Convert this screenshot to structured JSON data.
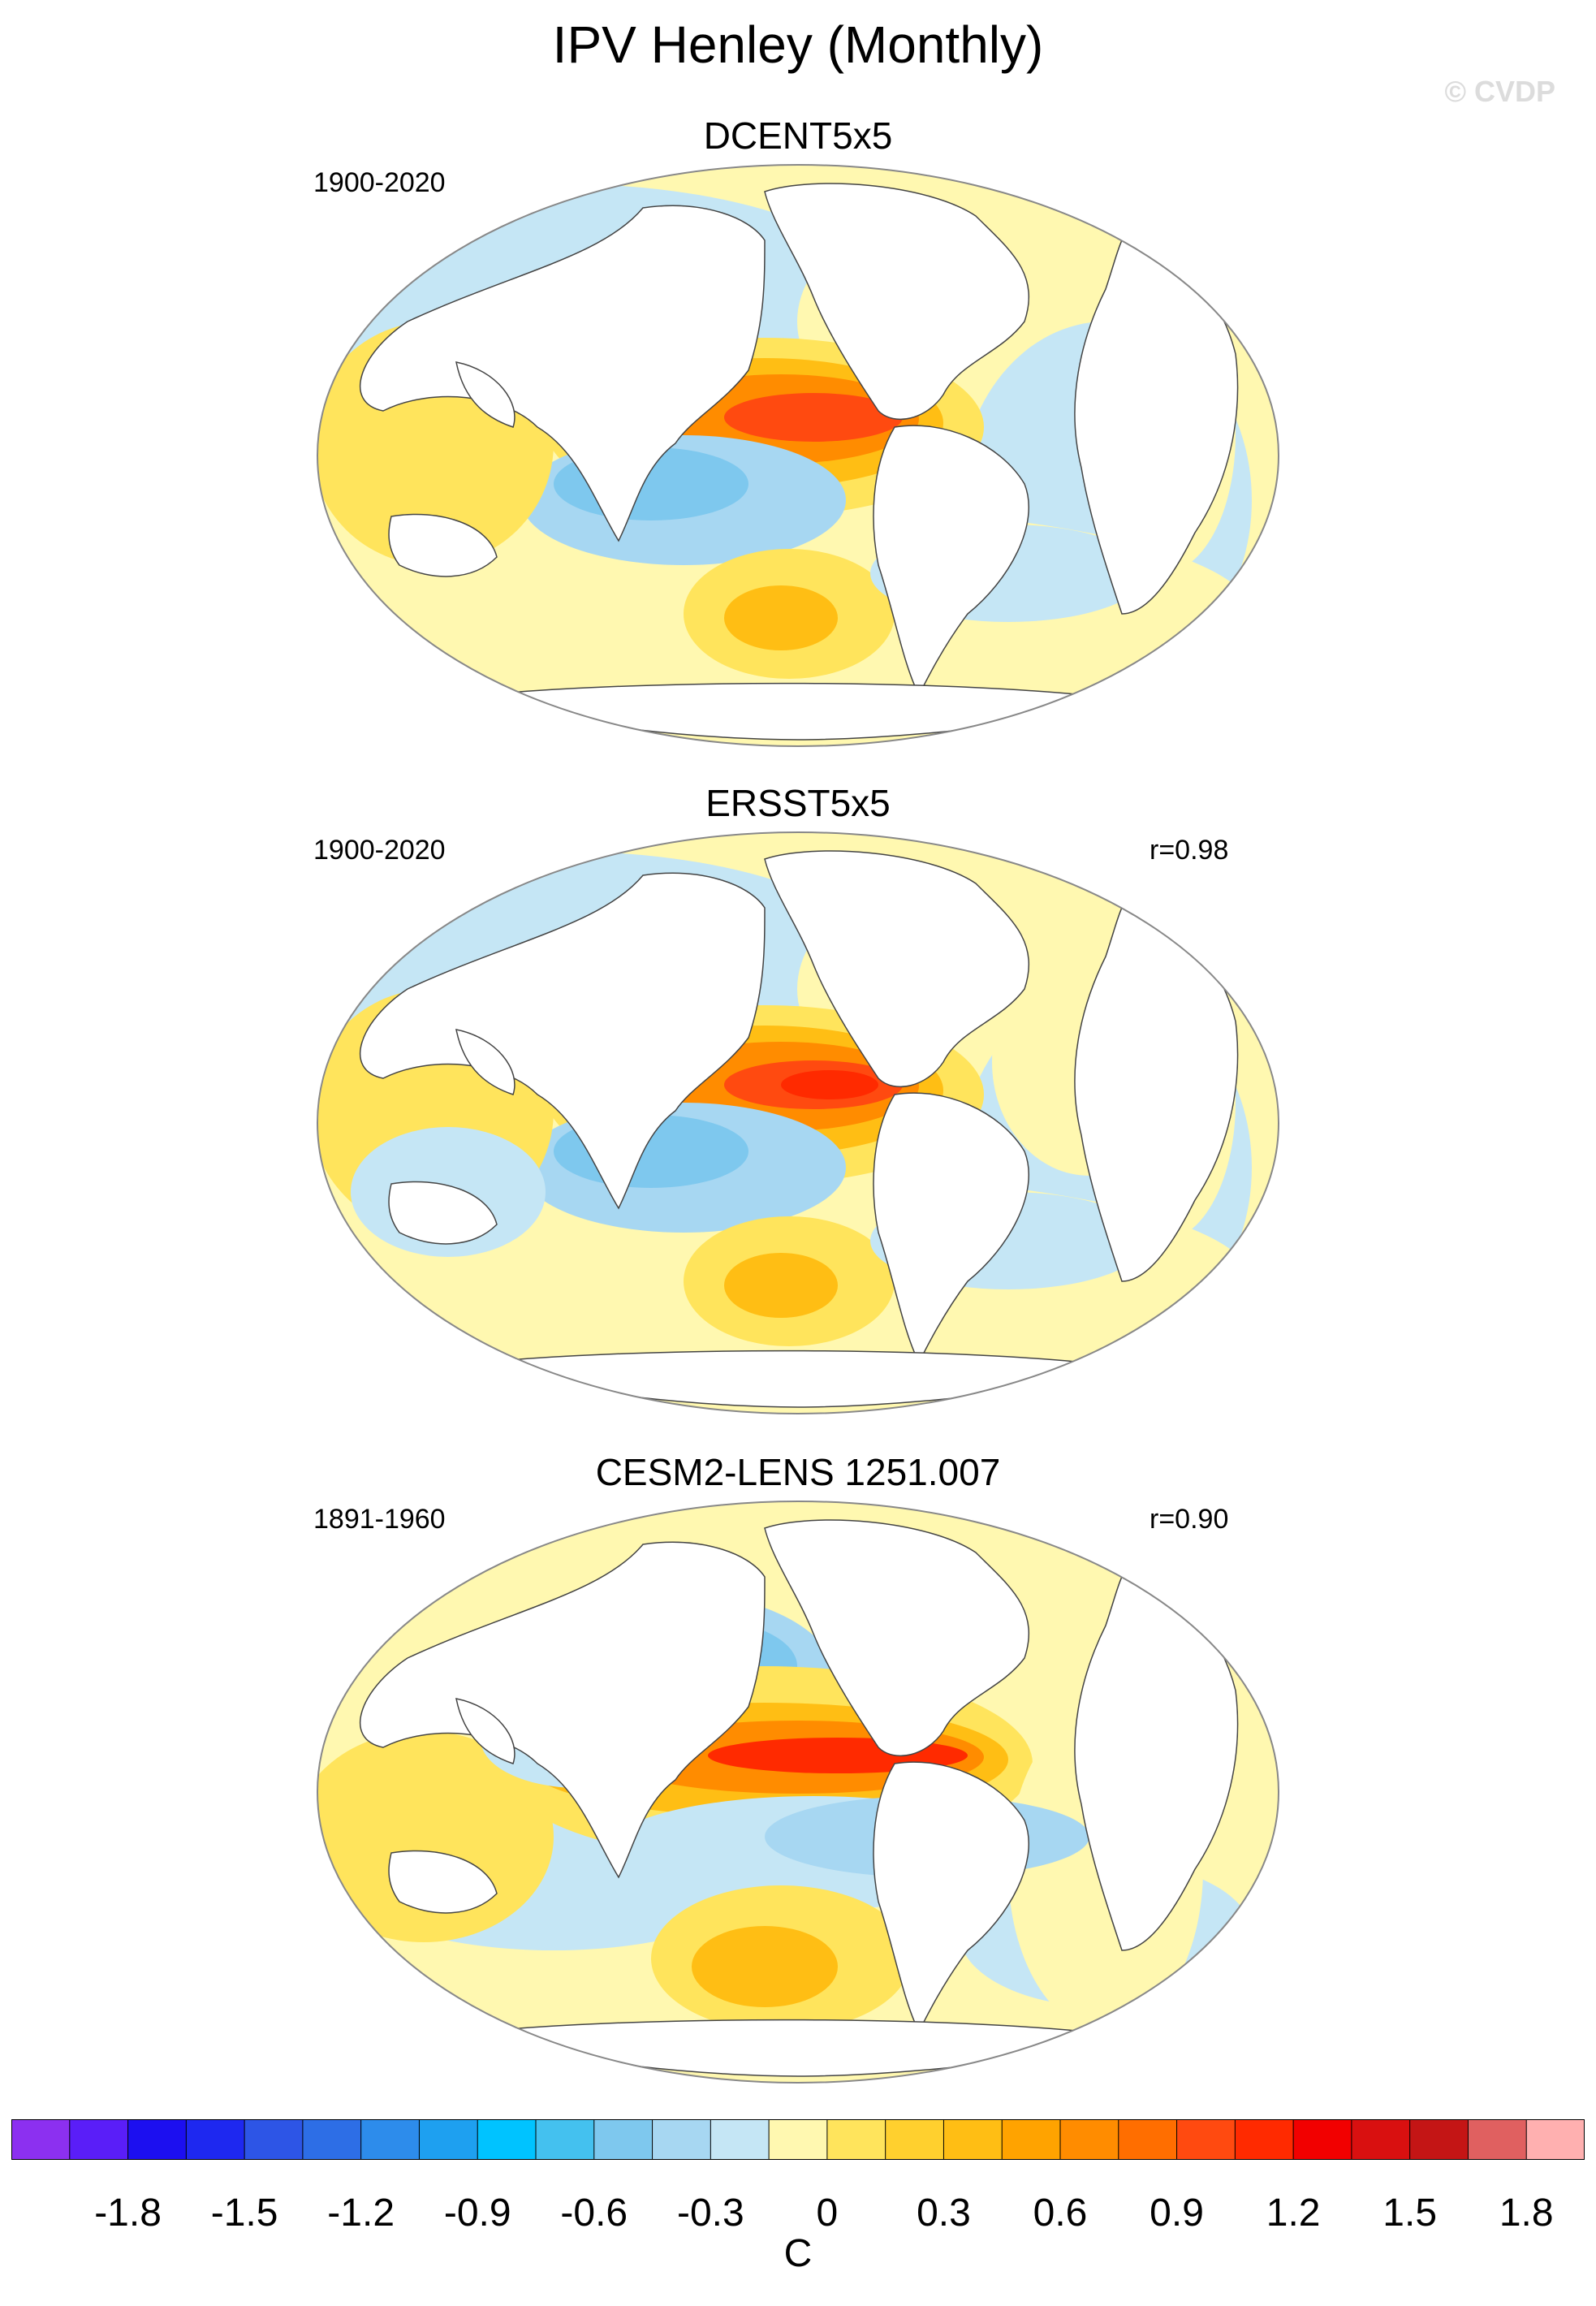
{
  "title": "IPV Henley (Monthly)",
  "watermark": "© CVDP",
  "panels": [
    {
      "title": "DCENT5x5",
      "period": "1900-2020",
      "correlation": ""
    },
    {
      "title": "ERSST5x5",
      "period": "1900-2020",
      "correlation": "r=0.98"
    },
    {
      "title": "CESM2-LENS 1251.007",
      "period": "1891-1960",
      "correlation": "r=0.90"
    }
  ],
  "colorbar": {
    "unit": "C",
    "labels": [
      "-1.8",
      "-1.5",
      "-1.2",
      "-0.9",
      "-0.6",
      "-0.3",
      "0",
      "0.3",
      "0.6",
      "0.9",
      "1.2",
      "1.5",
      "1.8"
    ],
    "colors": [
      "#8c30f0",
      "#5a1ef8",
      "#1c0ff0",
      "#1e28f0",
      "#2d55e6",
      "#2d6ee6",
      "#2d8ceb",
      "#1ea0f0",
      "#00c3ff",
      "#44c1ef",
      "#7ec8ee",
      "#a7d7f2",
      "#c5e6f5",
      "#fff8b0",
      "#ffe45c",
      "#ffd02e",
      "#ffbe14",
      "#ffa300",
      "#ff8c00",
      "#ff6e00",
      "#ff4a10",
      "#ff2a00",
      "#f20000",
      "#d91010",
      "#c41515",
      "#e06060",
      "#ffb0b0"
    ]
  },
  "map_colors": {
    "land": "#ffffff",
    "coast": "#444444",
    "frame": "#888888"
  }
}
